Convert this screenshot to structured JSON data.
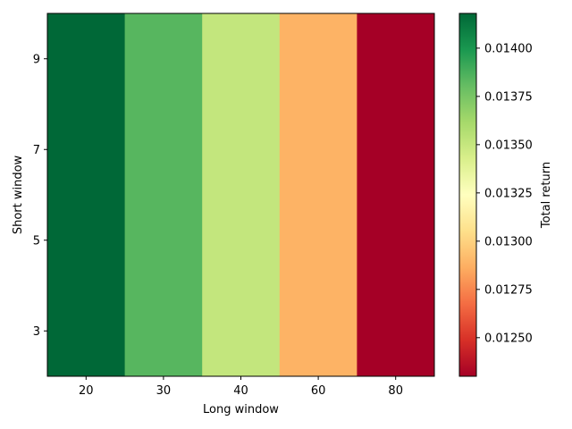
{
  "chart_data": {
    "type": "heatmap",
    "title": "",
    "xlabel": "Long window",
    "ylabel": "Short window",
    "x_categories": [
      "20",
      "30",
      "40",
      "60",
      "80"
    ],
    "y_ticks": [
      "3",
      "5",
      "7",
      "9"
    ],
    "y_range": [
      2,
      10
    ],
    "values_by_long_window": [
      0.01418,
      0.01385,
      0.01345,
      0.0129,
      0.0123
    ],
    "colormap": "RdYlGn",
    "colorbar": {
      "label": "Total return",
      "vmin": 0.0123,
      "vmax": 0.01418,
      "ticks": [
        "0.01250",
        "0.01275",
        "0.01300",
        "0.01325",
        "0.01350",
        "0.01375",
        "0.01400"
      ]
    },
    "grid": false,
    "colors": {
      "cells": [
        "#006837",
        "#57b65f",
        "#c3e67d",
        "#fdb365",
        "#a50026"
      ]
    }
  }
}
